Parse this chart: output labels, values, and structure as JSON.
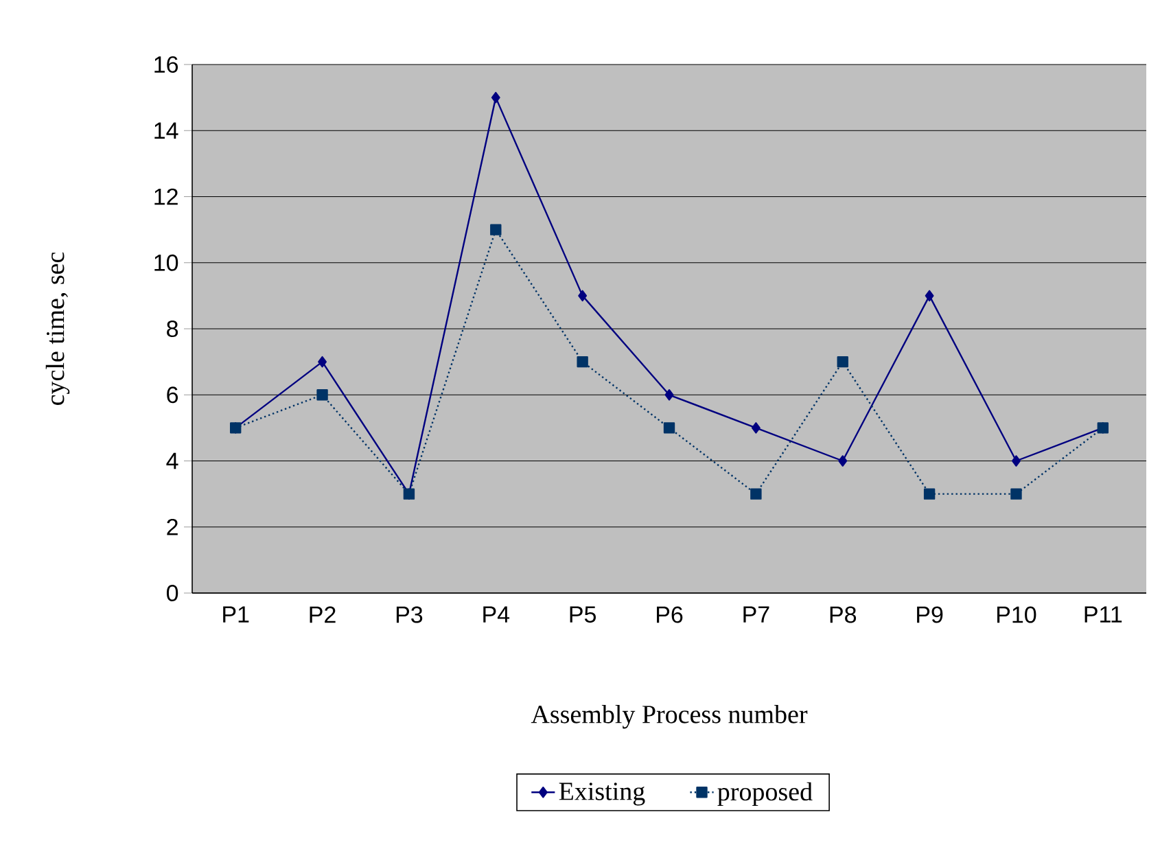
{
  "chart_data": {
    "type": "line",
    "xlabel": "Assembly Process number",
    "ylabel": "cycle time, sec",
    "categories": [
      "P1",
      "P2",
      "P3",
      "P4",
      "P5",
      "P6",
      "P7",
      "P8",
      "P9",
      "P10",
      "P11"
    ],
    "series": [
      {
        "name": "Existing",
        "color": "#000080",
        "marker": "diamond",
        "line_style": "solid",
        "values": [
          5,
          7,
          3,
          15,
          9,
          6,
          5,
          4,
          9,
          4,
          5
        ]
      },
      {
        "name": "proposed",
        "color": "#003366",
        "marker": "square",
        "line_style": "dotted",
        "values": [
          5,
          6,
          3,
          11,
          7,
          5,
          3,
          7,
          3,
          3,
          5
        ]
      }
    ],
    "ylim": [
      0,
      16
    ],
    "yticks": [
      0,
      2,
      4,
      6,
      8,
      10,
      12,
      14,
      16
    ],
    "grid": "y",
    "legend": "bottom"
  }
}
